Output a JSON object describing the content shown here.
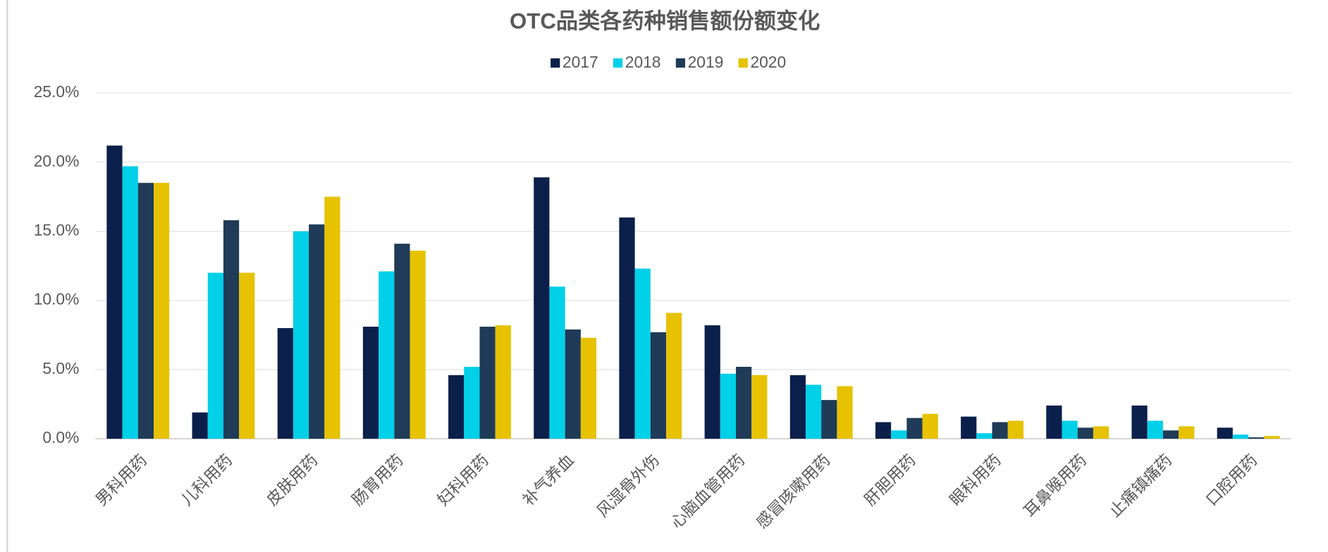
{
  "chart_data": {
    "type": "bar",
    "title": "OTC品类各药种销售额份额变化",
    "categories": [
      "男科用药",
      "儿科用药",
      "皮肤用药",
      "肠胃用药",
      "妇科用药",
      "补气养血",
      "风湿骨外伤",
      "心脑血管用药",
      "感冒咳嗽用药",
      "肝胆用药",
      "眼科用药",
      "耳鼻喉用药",
      "止痛镇痛药",
      "口腔用药"
    ],
    "series": [
      {
        "name": "2017",
        "color": "#0b1f4b",
        "values": [
          21.2,
          1.9,
          8.0,
          8.1,
          4.6,
          18.9,
          16.0,
          8.2,
          4.6,
          1.2,
          1.6,
          2.4,
          2.4,
          0.8
        ]
      },
      {
        "name": "2018",
        "color": "#00d0e8",
        "values": [
          19.7,
          12.0,
          15.0,
          12.1,
          5.2,
          11.0,
          12.3,
          4.7,
          3.9,
          0.6,
          0.4,
          1.3,
          1.3,
          0.3
        ]
      },
      {
        "name": "2019",
        "color": "#1f3b57",
        "values": [
          18.5,
          15.8,
          15.5,
          14.1,
          8.1,
          7.9,
          7.7,
          5.2,
          2.8,
          1.5,
          1.2,
          0.8,
          0.6,
          0.1
        ]
      },
      {
        "name": "2020",
        "color": "#e6c200",
        "values": [
          18.5,
          12.0,
          17.5,
          13.6,
          8.2,
          7.3,
          9.1,
          4.6,
          3.8,
          1.8,
          1.3,
          0.9,
          0.9,
          0.2
        ]
      }
    ],
    "ylim": [
      0,
      25
    ],
    "yticks": [
      {
        "value": 0,
        "label": "0.0%"
      },
      {
        "value": 5,
        "label": "5.0%"
      },
      {
        "value": 10,
        "label": "10.0%"
      },
      {
        "value": 15,
        "label": "15.0%"
      },
      {
        "value": 20,
        "label": "20.0%"
      },
      {
        "value": 25,
        "label": "25.0%"
      }
    ],
    "grid": true,
    "legend": "top"
  }
}
